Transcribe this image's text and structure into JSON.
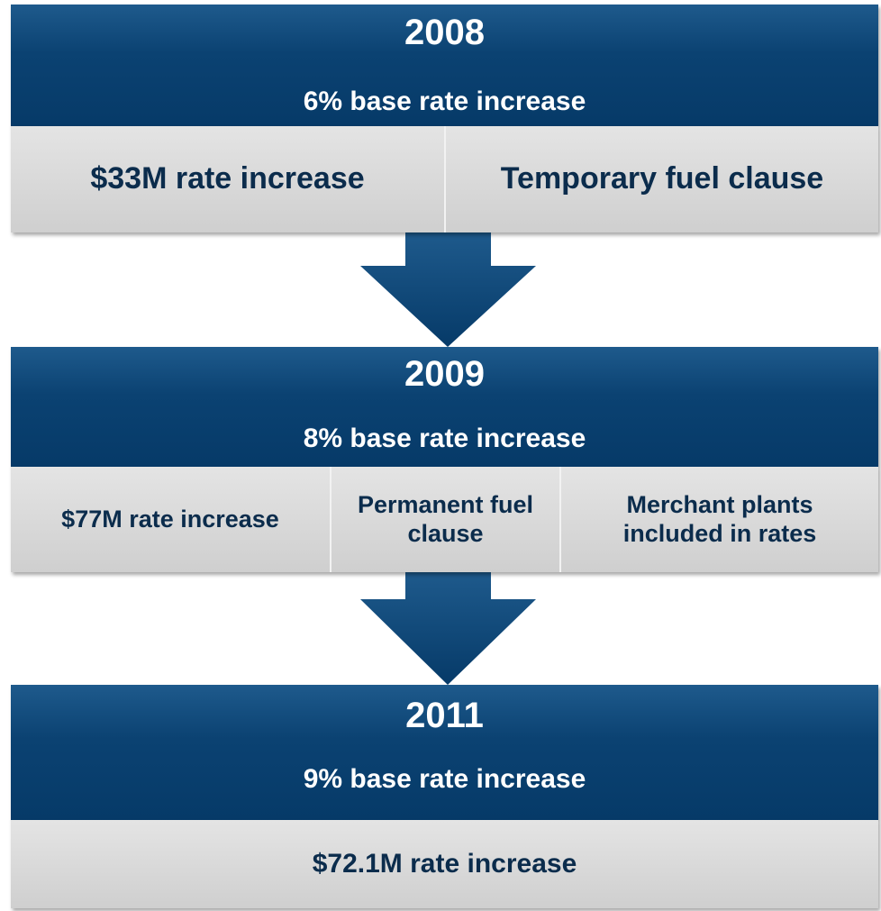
{
  "blocks": [
    {
      "year": "2008",
      "subtitle": "6% base rate increase",
      "items": [
        "$33M rate increase",
        "Temporary fuel clause"
      ]
    },
    {
      "year": "2009",
      "subtitle": "8% base rate increase",
      "items": [
        "$77M rate increase",
        "Permanent fuel clause",
        "Merchant plants included in rates"
      ]
    },
    {
      "year": "2011",
      "subtitle": "9% base rate increase",
      "items": [
        "$72.1M rate increase"
      ]
    }
  ]
}
